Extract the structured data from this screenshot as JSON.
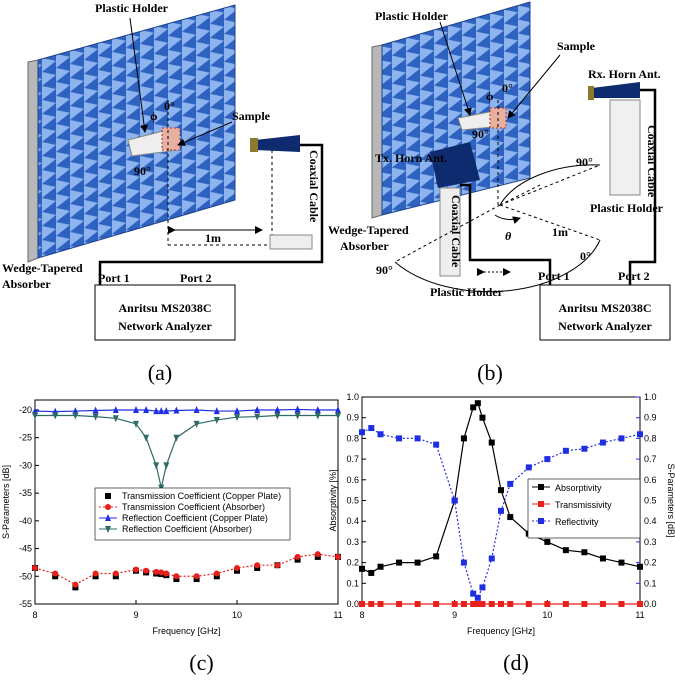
{
  "panels": [
    {
      "plastic_holder": "Plastic Holder",
      "sample": "Sample",
      "phi": "ϕ",
      "zero_deg": "0°",
      "ninety_deg": "90°",
      "distance": "1m",
      "coaxial_cable": "Coaxial Cable",
      "absorber": [
        "Wedge-Tapered",
        "Absorber"
      ],
      "port_1": "Port 1",
      "port_2": "Port 2",
      "analyzer": [
        "Anritsu MS2038C",
        "Network Analyzer"
      ],
      "label": "(a)"
    },
    {
      "plastic_holder": "Plastic Holder",
      "sample": "Sample",
      "phi": "ϕ",
      "zero_deg": "0°",
      "ninety_deg": "90°",
      "rx_horn": "Rx. Horn Ant.",
      "tx_horn": "Tx. Horn Ant.",
      "coaxial_cable_right": "Coaxial Cable",
      "coaxial_cable_left": "Coaxial Cable",
      "arc_ninety_top": "90°",
      "arc_ninety_left": "90°",
      "arc_zero": "0°",
      "distance": "1m",
      "theta": "θ",
      "holder_right": "Plastic Holder",
      "holder_left": "Plastic Holder",
      "absorber": [
        "Wedge-Tapered",
        "Absorber"
      ],
      "port_1": "Port 1",
      "port_2": "Port 2",
      "analyzer": [
        "Anritsu MS2038C",
        "Network Analyzer"
      ],
      "label": "(b)"
    }
  ],
  "chart_data": [
    {
      "type": "line",
      "label": "(c)",
      "xlabel": "Frequency [GHz]",
      "ylabel": "S-Parameters [dB]",
      "x": [
        8.0,
        8.2,
        8.4,
        8.6,
        8.8,
        9.0,
        9.1,
        9.2,
        9.25,
        9.3,
        9.4,
        9.6,
        9.8,
        10.0,
        10.2,
        10.4,
        10.6,
        10.8,
        11.0
      ],
      "xlim": [
        8,
        11
      ],
      "xticks": [
        8,
        9,
        10,
        11
      ],
      "ylim": [
        -55,
        -18.2
      ],
      "yticks": [
        -20,
        -25,
        -30,
        -35,
        -40,
        -45,
        -50,
        -55
      ],
      "legend": "center",
      "series": [
        {
          "name": "Transmission Coefficient (Copper Plate)",
          "color": "#000000",
          "marker": "square",
          "line": false,
          "values": [
            -48.5,
            -50,
            -52,
            -50,
            -50,
            -49,
            -49.3,
            -49.5,
            -49.6,
            -49.8,
            -50.5,
            -50.5,
            -50,
            -49,
            -48.5,
            -48,
            -47,
            -46.5,
            -46.5
          ]
        },
        {
          "name": "Transmission Coefficient (Absorber)",
          "color": "#e8201c",
          "marker": "circle",
          "line": true,
          "dash": true,
          "values": [
            -48.5,
            -49.5,
            -51.5,
            -49.5,
            -49.5,
            -48.8,
            -49,
            -49.2,
            -49.3,
            -49.5,
            -50,
            -50,
            -49.5,
            -48.5,
            -48,
            -48,
            -46.5,
            -46,
            -46.5
          ]
        },
        {
          "name": "Reflection Coefficient (Copper Plate)",
          "color": "#1f2fe0",
          "marker": "triangle",
          "line": true,
          "dash": false,
          "values": [
            -20.2,
            -20.3,
            -20.2,
            -20.1,
            -20,
            -20,
            -20,
            -20.2,
            -20.2,
            -20.2,
            -20.1,
            -20,
            -20.2,
            -20.2,
            -20,
            -20,
            -19.9,
            -20,
            -20
          ]
        },
        {
          "name": "Reflection Coefficient (Absorber)",
          "color": "#2f6b66",
          "marker": "triangle-down",
          "line": true,
          "dash": false,
          "values": [
            -21,
            -21,
            -21,
            -21.2,
            -21.5,
            -22.5,
            -25,
            -30,
            -34,
            -30,
            -25,
            -22.5,
            -21.8,
            -21.3,
            -21.2,
            -21,
            -21,
            -21,
            -21
          ]
        }
      ]
    },
    {
      "type": "line",
      "label": "(d)",
      "xlabel": "Frequency [GHz]",
      "ylabel": "Absorptivity [%]",
      "y2label": "S-Parameters [dB]",
      "x": [
        8.0,
        8.1,
        8.2,
        8.4,
        8.6,
        8.8,
        9.0,
        9.1,
        9.2,
        9.25,
        9.3,
        9.4,
        9.5,
        9.6,
        9.8,
        10.0,
        10.2,
        10.4,
        10.6,
        10.8,
        11.0
      ],
      "xlim": [
        8,
        11
      ],
      "xticks": [
        8,
        9,
        10,
        11
      ],
      "ylim": [
        0,
        1
      ],
      "yticks": [
        {
          "value": 0,
          "label": "0.0"
        },
        0.1,
        0.2,
        0.3,
        0.4,
        0.5,
        0.6,
        0.7,
        0.8,
        0.9,
        {
          "value": 1,
          "label": "1.0"
        }
      ],
      "y2lim": [
        0,
        1
      ],
      "y2ticks": [
        {
          "value": 0,
          "label": "0.0"
        },
        0.1,
        0.2,
        0.3,
        0.4,
        0.5,
        0.6,
        0.7,
        0.8,
        0.9,
        {
          "value": 1,
          "label": "1.0"
        }
      ],
      "legend": "right",
      "series": [
        {
          "name": "Absorptivity",
          "color": "#000000",
          "marker": "square",
          "line": true,
          "dash": false,
          "values": [
            0.17,
            0.15,
            0.18,
            0.2,
            0.2,
            0.23,
            0.5,
            0.8,
            0.95,
            0.97,
            0.9,
            0.78,
            0.55,
            0.42,
            0.34,
            0.3,
            0.26,
            0.25,
            0.22,
            0.2,
            0.18
          ]
        },
        {
          "name": "Transmissivity",
          "color": "#e8201c",
          "marker": "square",
          "line": true,
          "dash": false,
          "values": [
            0,
            0,
            0,
            0,
            0,
            0,
            0,
            0,
            0,
            0,
            0,
            0,
            0,
            0,
            0,
            0,
            0,
            0,
            0,
            0,
            0
          ]
        },
        {
          "name": "Reflectivity",
          "color": "#1f2fe0",
          "marker": "square",
          "line": true,
          "dash": true,
          "axis": "y2",
          "values": [
            0.83,
            0.85,
            0.82,
            0.8,
            0.8,
            0.77,
            0.5,
            0.2,
            0.05,
            0.03,
            0.08,
            0.22,
            0.45,
            0.58,
            0.66,
            0.7,
            0.74,
            0.75,
            0.78,
            0.8,
            0.82
          ]
        }
      ]
    }
  ]
}
